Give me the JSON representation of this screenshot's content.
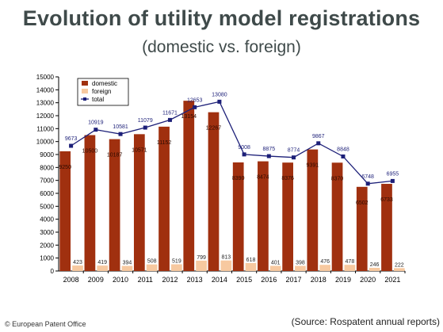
{
  "header": {
    "title": "Evolution of utility model registrations",
    "subtitle": "(domestic vs. foreign)"
  },
  "footer": {
    "copyright": "© European Patent Office",
    "source": "(Source: Rospatent annual reports)"
  },
  "chart_data": {
    "type": "bar",
    "categories": [
      "2008",
      "2009",
      "2010",
      "2011",
      "2012",
      "2013",
      "2014",
      "2015",
      "2016",
      "2017",
      "2018",
      "2019",
      "2020",
      "2021"
    ],
    "series": [
      {
        "name": "domestic",
        "type": "bar",
        "color": "#a0300f",
        "values": [
          9250,
          10500,
          10187,
          10571,
          11152,
          13154,
          12267,
          8390,
          8474,
          8376,
          9391,
          8370,
          6502,
          6733
        ]
      },
      {
        "name": "foreign",
        "type": "bar",
        "color": "#f7c9a0",
        "values": [
          423,
          419,
          394,
          508,
          519,
          799,
          813,
          618,
          401,
          398,
          476,
          478,
          246,
          222
        ]
      },
      {
        "name": "total",
        "type": "line",
        "color": "#1c1f78",
        "values": [
          9673,
          10919,
          10581,
          11079,
          11671,
          12653,
          13080,
          9008,
          8875,
          8774,
          9867,
          8848,
          6748,
          6955
        ]
      }
    ],
    "ylim": [
      0,
      15000
    ],
    "ytick_step": 1000,
    "yticks": [
      "0",
      "1000",
      "2000",
      "3000",
      "4000",
      "5000",
      "6000",
      "7000",
      "8000",
      "9000",
      "10000",
      "11000",
      "12000",
      "13000",
      "14000",
      "15000"
    ],
    "grid": false,
    "legend_position": "top-left"
  }
}
